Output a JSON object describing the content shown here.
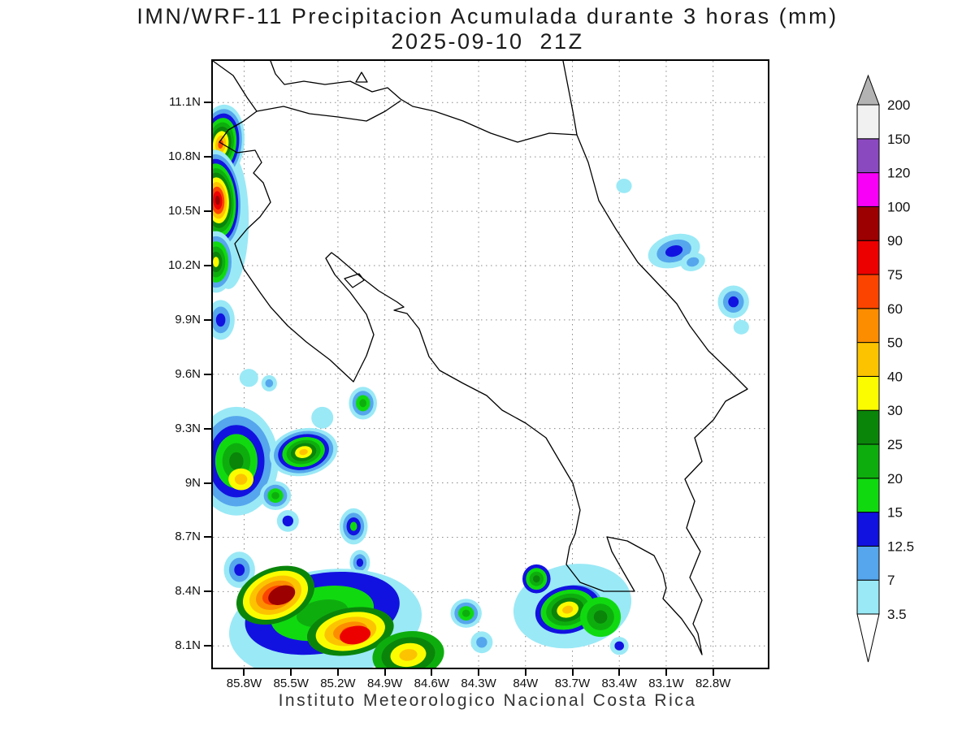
{
  "title": {
    "line1": "IMN/WRF-11 Precipitacion Acumulada durante 3 horas (mm)",
    "line2": "2025-09-10  21Z"
  },
  "footer": "Instituto Meteorologico Nacional Costa Rica",
  "chart_data": {
    "type": "heatmap",
    "title": "IMN/WRF-11 Precipitacion Acumulada durante 3 horas (mm)",
    "valid_time": "2025-09-10 21Z",
    "units": "mm",
    "credit": "Instituto Meteorologico Nacional Costa Rica",
    "lon_range": [
      -86.0,
      -82.45
    ],
    "lat_range": [
      7.98,
      11.33
    ],
    "grid": true,
    "legend_position": "right",
    "x_axis": {
      "label": "longitude",
      "ticks": [
        {
          "label": "85.8W",
          "value": -85.8
        },
        {
          "label": "85.5W",
          "value": -85.5
        },
        {
          "label": "85.2W",
          "value": -85.2
        },
        {
          "label": "84.9W",
          "value": -84.9
        },
        {
          "label": "84.6W",
          "value": -84.6
        },
        {
          "label": "84.3W",
          "value": -84.3
        },
        {
          "label": "84W",
          "value": -84.0
        },
        {
          "label": "83.7W",
          "value": -83.7
        },
        {
          "label": "83.4W",
          "value": -83.4
        },
        {
          "label": "83.1W",
          "value": -83.1
        },
        {
          "label": "82.8W",
          "value": -82.8
        }
      ]
    },
    "y_axis": {
      "label": "latitude",
      "ticks": [
        {
          "label": "11.1N",
          "value": 11.1
        },
        {
          "label": "10.8N",
          "value": 10.8
        },
        {
          "label": "10.5N",
          "value": 10.5
        },
        {
          "label": "10.2N",
          "value": 10.2
        },
        {
          "label": "9.9N",
          "value": 9.9
        },
        {
          "label": "9.6N",
          "value": 9.6
        },
        {
          "label": "9.3N",
          "value": 9.3
        },
        {
          "label": "9N",
          "value": 9.0
        },
        {
          "label": "8.7N",
          "value": 8.7
        },
        {
          "label": "8.4N",
          "value": 8.4
        },
        {
          "label": "8.1N",
          "value": 8.1
        }
      ]
    },
    "colorbar": {
      "over_color": "#b3b3b3",
      "under_color": "#ffffff",
      "stops": [
        {
          "label": "3.5",
          "value": 3.5,
          "color": "#9ae9f6"
        },
        {
          "label": "7",
          "value": 7,
          "color": "#55a6ec"
        },
        {
          "label": "12.5",
          "value": 12.5,
          "color": "#1212e0"
        },
        {
          "label": "15",
          "value": 15,
          "color": "#10d910"
        },
        {
          "label": "20",
          "value": 20,
          "color": "#0ead0e"
        },
        {
          "label": "25",
          "value": 25,
          "color": "#0a850a"
        },
        {
          "label": "30",
          "value": 30,
          "color": "#fcfc00"
        },
        {
          "label": "40",
          "value": 40,
          "color": "#fcc400"
        },
        {
          "label": "50",
          "value": 50,
          "color": "#fc8d00"
        },
        {
          "label": "60",
          "value": 60,
          "color": "#fb4400"
        },
        {
          "label": "75",
          "value": 75,
          "color": "#ec0000"
        },
        {
          "label": "90",
          "value": 90,
          "color": "#9c0000"
        },
        {
          "label": "100",
          "value": 100,
          "color": "#f800f8"
        },
        {
          "label": "120",
          "value": 120,
          "color": "#8b49c0"
        },
        {
          "label": "150",
          "value": 150,
          "color": "#f1f1f1"
        },
        {
          "label": "200",
          "value": 200,
          "color": "#b3b3b3"
        }
      ]
    },
    "level_colors": {
      "3.5": "#9ae9f6",
      "7": "#55a6ec",
      "12.5": "#1212e0",
      "15": "#10d910",
      "20": "#0ead0e",
      "25": "#0a850a",
      "30": "#fcfc00",
      "40": "#fcc400",
      "50": "#fc8d00",
      "60": "#fb4400",
      "75": "#ec0000",
      "90": "#9c0000",
      "100": "#f800f8",
      "120": "#8b49c0",
      "150": "#f1f1f1",
      "200": "#b3b3b3"
    },
    "precip_cells": [
      {
        "lon": -85.9,
        "lat": 10.45,
        "rx": 0.13,
        "ry": 0.38,
        "rot": 0,
        "levels": [
          3.5
        ]
      },
      {
        "lon": -85.95,
        "lat": 10.87,
        "rx": 0.15,
        "ry": 0.22,
        "rot": 8,
        "levels": [
          3.5,
          7,
          12.5,
          15,
          20,
          25,
          30,
          40,
          60
        ]
      },
      {
        "lon": -85.97,
        "lat": 10.56,
        "rx": 0.16,
        "ry": 0.28,
        "rot": -4,
        "levels": [
          3.5,
          7,
          12.5,
          15,
          20,
          25,
          30,
          40,
          60,
          75,
          90
        ]
      },
      {
        "lon": -85.98,
        "lat": 10.22,
        "rx": 0.12,
        "ry": 0.17,
        "rot": 0,
        "levels": [
          3.5,
          7,
          15,
          20,
          25,
          30
        ]
      },
      {
        "lon": -85.95,
        "lat": 9.9,
        "rx": 0.09,
        "ry": 0.11,
        "rot": 0,
        "levels": [
          3.5,
          7,
          12.5
        ]
      },
      {
        "lon": -85.77,
        "lat": 9.58,
        "rx": 0.06,
        "ry": 0.05,
        "rot": 0,
        "levels": [
          3.5
        ]
      },
      {
        "lon": -85.64,
        "lat": 9.55,
        "rx": 0.05,
        "ry": 0.045,
        "rot": 0,
        "levels": [
          3.5,
          7
        ]
      },
      {
        "lon": -85.85,
        "lat": 9.12,
        "rx": 0.27,
        "ry": 0.3,
        "rot": 0,
        "levels": [
          3.5,
          7,
          12.5,
          15,
          20,
          25
        ]
      },
      {
        "lon": -85.82,
        "lat": 9.02,
        "rx": 0.08,
        "ry": 0.06,
        "rot": 0,
        "levels": [
          30,
          40
        ]
      },
      {
        "lon": -85.42,
        "lat": 9.17,
        "rx": 0.22,
        "ry": 0.13,
        "rot": -12,
        "levels": [
          3.5,
          7,
          12.5,
          15,
          20,
          25,
          30,
          40
        ]
      },
      {
        "lon": -85.3,
        "lat": 9.36,
        "rx": 0.07,
        "ry": 0.06,
        "rot": 0,
        "levels": [
          3.5
        ]
      },
      {
        "lon": -85.6,
        "lat": 8.93,
        "rx": 0.1,
        "ry": 0.08,
        "rot": 0,
        "levels": [
          3.5,
          7,
          15,
          20
        ]
      },
      {
        "lon": -85.52,
        "lat": 8.79,
        "rx": 0.07,
        "ry": 0.06,
        "rot": 0,
        "levels": [
          3.5,
          12.5
        ]
      },
      {
        "lon": -85.04,
        "lat": 9.44,
        "rx": 0.09,
        "ry": 0.09,
        "rot": 0,
        "levels": [
          3.5,
          7,
          15,
          20
        ]
      },
      {
        "lon": -85.1,
        "lat": 8.76,
        "rx": 0.09,
        "ry": 0.1,
        "rot": 0,
        "levels": [
          3.5,
          7,
          12.5,
          15
        ]
      },
      {
        "lon": -85.06,
        "lat": 8.56,
        "rx": 0.065,
        "ry": 0.07,
        "rot": 0,
        "levels": [
          3.5,
          7,
          12.5
        ]
      },
      {
        "lon": -85.83,
        "lat": 8.52,
        "rx": 0.1,
        "ry": 0.1,
        "rot": 0,
        "levels": [
          3.5,
          7,
          12.5
        ]
      },
      {
        "lon": -85.28,
        "lat": 8.22,
        "rx": 0.62,
        "ry": 0.3,
        "rot": -8,
        "levels": [
          3.5,
          7
        ]
      },
      {
        "lon": -85.3,
        "lat": 8.28,
        "rx": 0.5,
        "ry": 0.22,
        "rot": -10,
        "levels": [
          12.5,
          15,
          20
        ]
      },
      {
        "lon": -85.6,
        "lat": 8.38,
        "rx": 0.26,
        "ry": 0.15,
        "rot": -22,
        "levels": [
          25,
          30,
          40,
          50,
          60,
          75
        ]
      },
      {
        "lon": -85.56,
        "lat": 8.38,
        "rx": 0.09,
        "ry": 0.05,
        "rot": -22,
        "levels": [
          90
        ]
      },
      {
        "lon": -85.12,
        "lat": 8.18,
        "rx": 0.28,
        "ry": 0.13,
        "rot": -10,
        "levels": [
          25,
          30,
          40,
          50,
          60
        ]
      },
      {
        "lon": -85.09,
        "lat": 8.16,
        "rx": 0.1,
        "ry": 0.05,
        "rot": -10,
        "levels": [
          75
        ]
      },
      {
        "lon": -84.75,
        "lat": 8.05,
        "rx": 0.23,
        "ry": 0.13,
        "rot": -8,
        "levels": [
          20,
          25,
          30,
          40
        ]
      },
      {
        "lon": -84.38,
        "lat": 8.28,
        "rx": 0.1,
        "ry": 0.08,
        "rot": 0,
        "levels": [
          3.5,
          7,
          15,
          20
        ]
      },
      {
        "lon": -84.28,
        "lat": 8.12,
        "rx": 0.07,
        "ry": 0.06,
        "rot": 0,
        "levels": [
          3.5,
          7
        ]
      },
      {
        "lon": -83.7,
        "lat": 8.32,
        "rx": 0.38,
        "ry": 0.23,
        "rot": -10,
        "levels": [
          3.5,
          7
        ]
      },
      {
        "lon": -83.93,
        "lat": 8.47,
        "rx": 0.09,
        "ry": 0.08,
        "rot": 0,
        "levels": [
          12.5,
          15,
          20,
          25
        ]
      },
      {
        "lon": -83.73,
        "lat": 8.3,
        "rx": 0.21,
        "ry": 0.13,
        "rot": -14,
        "levels": [
          12.5,
          15,
          20,
          25,
          30,
          40
        ]
      },
      {
        "lon": -83.52,
        "lat": 8.26,
        "rx": 0.13,
        "ry": 0.11,
        "rot": 0,
        "levels": [
          15,
          20,
          25
        ]
      },
      {
        "lon": -83.4,
        "lat": 8.1,
        "rx": 0.06,
        "ry": 0.05,
        "rot": 0,
        "levels": [
          3.5,
          12.5
        ]
      },
      {
        "lon": -83.05,
        "lat": 10.28,
        "rx": 0.17,
        "ry": 0.09,
        "rot": -16,
        "levels": [
          3.5,
          7,
          12.5
        ]
      },
      {
        "lon": -82.93,
        "lat": 10.22,
        "rx": 0.08,
        "ry": 0.05,
        "rot": -16,
        "levels": [
          3.5,
          7
        ]
      },
      {
        "lon": -83.37,
        "lat": 10.64,
        "rx": 0.05,
        "ry": 0.04,
        "rot": 0,
        "levels": [
          3.5
        ]
      },
      {
        "lon": -82.67,
        "lat": 10.0,
        "rx": 0.1,
        "ry": 0.09,
        "rot": 0,
        "levels": [
          3.5,
          7,
          12.5
        ]
      },
      {
        "lon": -82.62,
        "lat": 9.86,
        "rx": 0.05,
        "ry": 0.04,
        "rot": 0,
        "levels": [
          3.5
        ]
      }
    ]
  }
}
